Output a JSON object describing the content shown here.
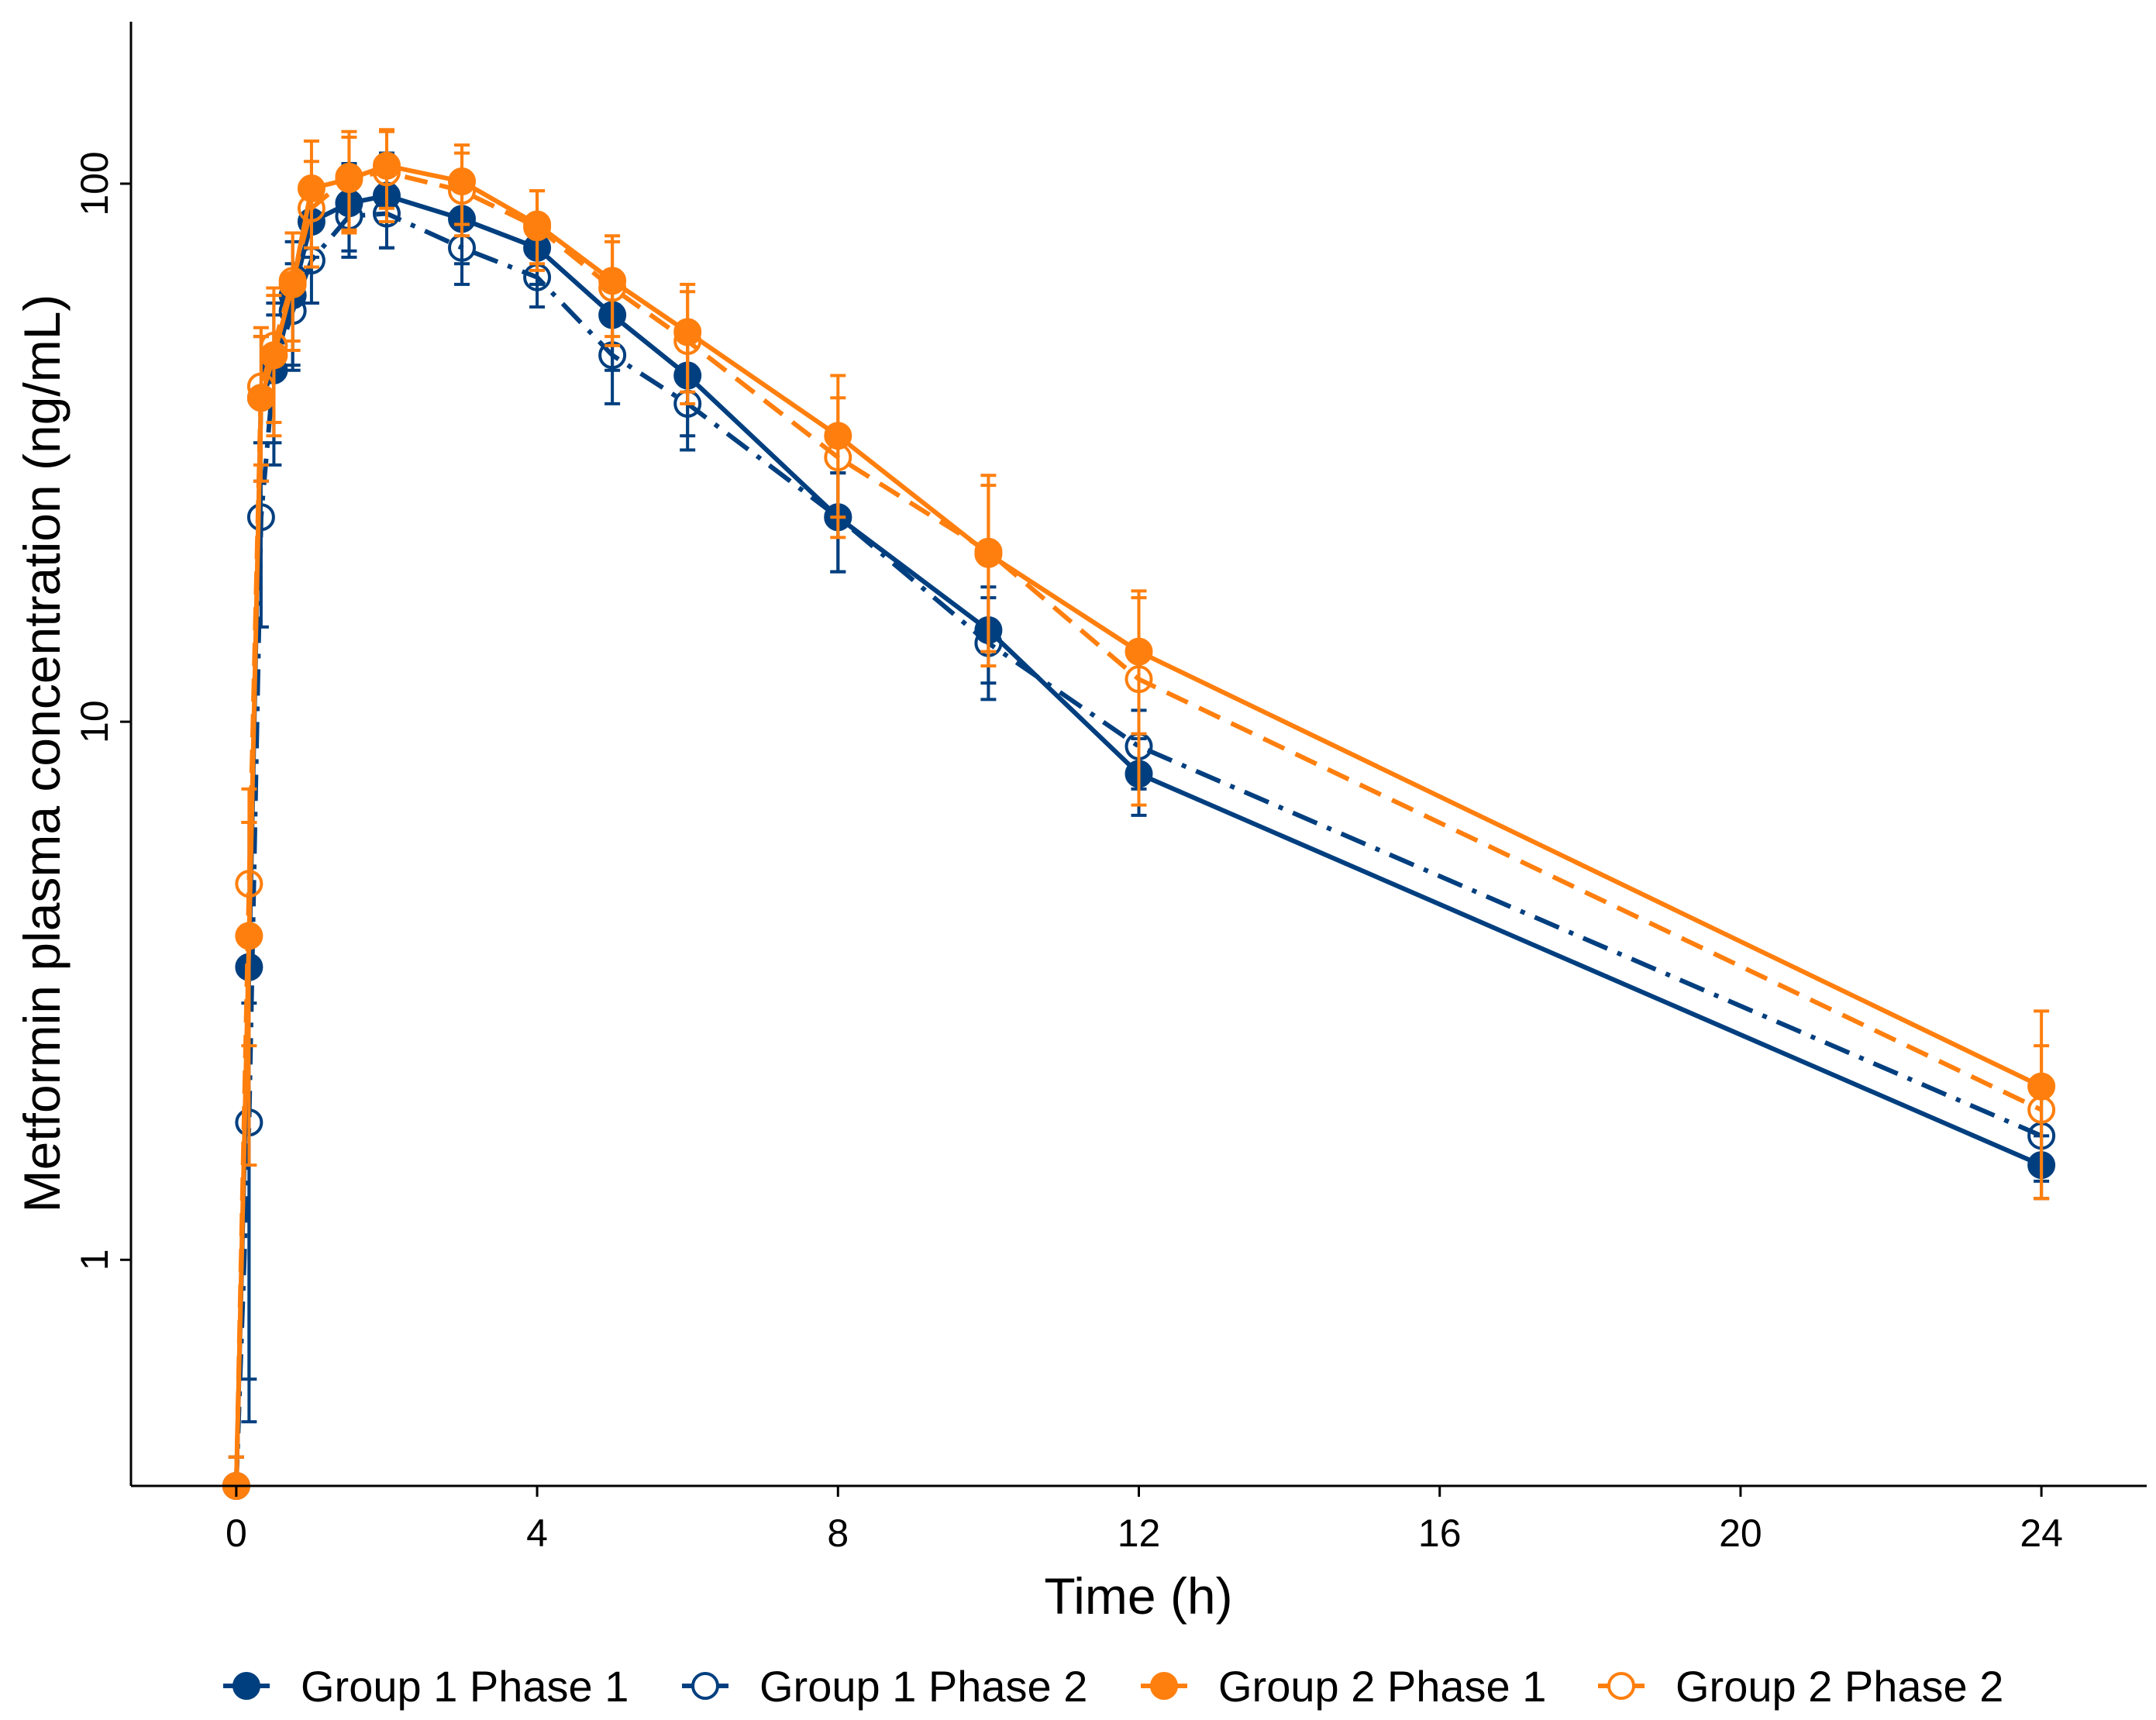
{
  "chart_data": {
    "type": "line",
    "xlabel": "Time (h)",
    "ylabel": "Metformin plasma concentration (ng/mL)",
    "y_scale": "log",
    "xlim": [
      -1.4,
      25.4
    ],
    "ylim": [
      0.38,
      200
    ],
    "x_ticks": [
      0,
      4,
      8,
      12,
      16,
      20,
      24
    ],
    "x_tick_labels": [
      "0",
      "4",
      "8",
      "12",
      "16",
      "20",
      "24"
    ],
    "y_ticks": [
      1,
      10,
      100
    ],
    "y_tick_labels": [
      "1",
      "10",
      "100"
    ],
    "legend_position": "bottom",
    "series": [
      {
        "name": "Group 1 Phase 1",
        "color": "#003f7f",
        "line_style": "solid",
        "marker": "filled-circle",
        "x": [
          0,
          0.17,
          0.33,
          0.5,
          0.75,
          1,
          1.5,
          2,
          3,
          4,
          5,
          6,
          8,
          10,
          12,
          24
        ],
        "y": [
          0.38,
          3.5,
          40,
          45,
          62,
          85,
          92,
          95,
          86,
          76,
          57,
          44,
          24,
          14.8,
          8.0,
          1.5
        ],
        "error": [
          0.05,
          3.0,
          12,
          15,
          16,
          12,
          17,
          19,
          15,
          11,
          12,
          10,
          5,
          3,
          1.3,
          0.2
        ]
      },
      {
        "name": "Group 1 Phase 2",
        "color": "#003f7f",
        "line_style": "dashdot",
        "marker": "open-circle",
        "x": [
          0,
          0.17,
          0.33,
          0.5,
          0.75,
          1,
          1.5,
          2,
          3,
          4,
          5,
          6,
          8,
          10,
          12,
          24
        ],
        "y": [
          0.38,
          1.8,
          24,
          45,
          58,
          72,
          87,
          88,
          76,
          67,
          48,
          39,
          24,
          14,
          9.0,
          1.7
        ],
        "error": [
          0.05,
          1.2,
          9,
          12,
          13,
          12,
          14,
          12,
          11,
          8,
          9,
          7,
          5,
          3,
          1.5,
          0.3
        ]
      },
      {
        "name": "Group 2 Phase 1",
        "color": "#ff7f0e",
        "line_style": "solid",
        "marker": "filled-circle",
        "x": [
          0,
          0.17,
          0.33,
          0.5,
          0.75,
          1,
          1.5,
          2,
          3,
          4,
          5,
          6,
          8,
          10,
          12,
          24
        ],
        "y": [
          0.38,
          4.0,
          40,
          48,
          65,
          98,
          102,
          108,
          101,
          84,
          66,
          53,
          34,
          20.5,
          13.5,
          2.1
        ],
        "error": [
          0.05,
          2.5,
          12,
          14,
          16,
          22,
          20,
          18,
          17,
          13,
          14,
          12,
          10,
          7,
          4,
          0.8
        ]
      },
      {
        "name": "Group 2 Phase 2",
        "color": "#ff7f0e",
        "line_style": "dashdash",
        "marker": "open-circle",
        "x": [
          0,
          0.17,
          0.33,
          0.5,
          0.75,
          1,
          1.5,
          2,
          3,
          4,
          5,
          6,
          8,
          10,
          12,
          24
        ],
        "y": [
          0.38,
          5.0,
          42,
          50,
          66,
          90,
          103,
          105,
          97,
          83,
          64,
          51,
          31,
          20.7,
          12.0,
          1.9
        ],
        "error": [
          0.05,
          2.5,
          12,
          14,
          15,
          20,
          22,
          20,
          17,
          14,
          14,
          12,
          9,
          8,
          5,
          0.6
        ]
      }
    ]
  }
}
